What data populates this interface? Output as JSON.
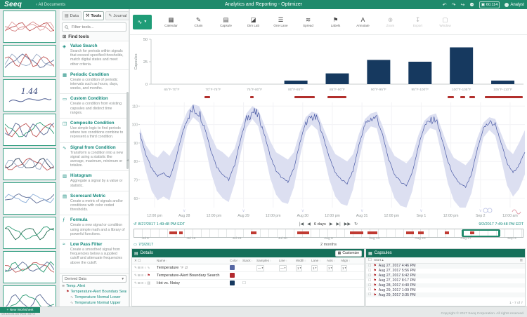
{
  "topbar": {
    "logo": "Seeq",
    "back_label": "‹ All Documents",
    "title": "Analytics and Reporting - Optimizer",
    "badge": "60.114",
    "user": "Analyst"
  },
  "sidebar": {
    "new_button": "+ New Worksheet",
    "thumbnails": [
      {
        "colors": [
          "#d98a8a",
          "#c05555",
          "#e0a0a0"
        ]
      },
      {
        "colors": [
          "#5a6a95",
          "#9aabc5",
          "#c05555"
        ]
      },
      {
        "text": "1.44"
      },
      {
        "colors": [
          "#2a9a72",
          "#c05555",
          "#5a6a95"
        ]
      },
      {
        "colors": [
          "#c05555",
          "#35455f",
          "#9aabc5"
        ]
      },
      {
        "colors": [
          "#5a6a95",
          "#8aadd8"
        ]
      },
      {
        "colors": [
          "#2a9a72",
          "#1f6b4f"
        ]
      },
      {
        "colors": [
          "#c05555",
          "#5a6a95",
          "#2a9a72"
        ]
      },
      {
        "colors": [
          "#2a9a72",
          "#5a6a95"
        ]
      }
    ]
  },
  "tools": {
    "tabs": [
      {
        "label": "Data",
        "icon": "▤",
        "active": false
      },
      {
        "label": "Tools",
        "icon": "⚒",
        "active": true
      },
      {
        "label": "Journal",
        "icon": "✎",
        "active": false
      }
    ],
    "filter_placeholder": "Filter tools...",
    "find_tools": "Find tools",
    "items": [
      {
        "icon": "◈",
        "name": "Value Search",
        "desc": "Search for periods within signals that exceed specified thresholds, match digital states and meet other criteria."
      },
      {
        "icon": "▦",
        "name": "Periodic Condition",
        "desc": "Create a condition of periodic intervals such as hours, days, weeks, and months."
      },
      {
        "icon": "▭",
        "name": "Custom Condition",
        "desc": "Create a condition from existing capsules and distinct time ranges."
      },
      {
        "icon": "◫",
        "name": "Composite Condition",
        "desc": "Use simple logic to find periods where two conditions combine to represent a third condition."
      },
      {
        "icon": "∿",
        "name": "Signal from Condition",
        "desc": "Transform a condition into a new signal using a statistic like average, maximum, minimum or totalize."
      },
      {
        "icon": "▥",
        "name": "Histogram",
        "desc": "Aggregate a signal by a value or statistic."
      },
      {
        "icon": "▤",
        "name": "Scorecard Metric",
        "desc": "Create a metric of signals and/or conditions with color coded thresholds."
      },
      {
        "icon": "ƒ",
        "name": "Formula",
        "desc": "Create a new signal or condition using simple math and a library of powerful functions."
      },
      {
        "icon": "≈",
        "name": "Low Pass Filter",
        "desc": "Create a smoothed signal from frequencies below a supplied cutoff and attenuate frequencies above the cutoff."
      }
    ],
    "derived": {
      "header": "Derived Data",
      "items": [
        {
          "icon": "≣",
          "label": "Temp. Alert",
          "indent": 0
        },
        {
          "icon": "⚑",
          "label": "Temperature-Alert Boundary Search",
          "indent": 1
        },
        {
          "icon": "∿",
          "label": "Temperature Normal Lower",
          "indent": 2
        },
        {
          "icon": "∿",
          "label": "Temperature Normal Upper",
          "indent": 2
        }
      ]
    }
  },
  "toolbar": {
    "view_icon": "∿",
    "buttons": [
      {
        "label": "Calendar",
        "icon": "▦",
        "disabled": false
      },
      {
        "label": "Chain",
        "icon": "✎",
        "disabled": false
      },
      {
        "label": "Capsule",
        "icon": "▤",
        "disabled": false
      },
      {
        "label": "Dim Lab",
        "icon": "◪",
        "disabled": false
      },
      {
        "label": "One Lane",
        "icon": "☰",
        "disabled": false
      },
      {
        "label": "Spread",
        "icon": "≋",
        "disabled": false
      },
      {
        "label": "Labels",
        "icon": "⚑",
        "disabled": false
      },
      {
        "label": "Annotate",
        "icon": "A",
        "disabled": false
      },
      {
        "label": "Zoom",
        "icon": "⊕",
        "disabled": true
      },
      {
        "label": "Export",
        "icon": "↧",
        "disabled": true
      },
      {
        "label": "Window",
        "icon": "▢",
        "disabled": true
      }
    ]
  },
  "chart_data": [
    {
      "id": "capsule-histogram",
      "type": "bar",
      "title": "Hot vs. Noisy",
      "categories": [
        "65°F-70°F",
        "70°F-75°F",
        "75°F-80°F",
        "80°F-85°F",
        "85°F-90°F",
        "90°F-95°F",
        "95°F-100°F",
        "100°F-105°F",
        "105°F-110°F"
      ],
      "values": [
        0,
        0,
        0,
        4,
        12,
        27,
        25,
        41,
        4
      ],
      "xlabel": "",
      "ylabel": "Capsules",
      "ylim": [
        0,
        50
      ],
      "yticks": [
        0,
        25,
        50
      ],
      "bar_color": "#16395f",
      "grid": false
    },
    {
      "id": "temperature-trend",
      "type": "line",
      "title": "Temperature",
      "ylabel": "",
      "ylim": [
        55,
        112
      ],
      "yticks": [
        60,
        70,
        80,
        90,
        100,
        110
      ],
      "x_ticks": [
        "12:00 pm",
        "Aug 28",
        "12:00 pm",
        "Aug 29",
        "12:00 pm",
        "Aug 30",
        "12:00 pm",
        "Aug 31",
        "12:00 pm",
        "Sep 1",
        "12:00 pm",
        "Sep 2",
        "12:00 am"
      ],
      "day_marker_ticks": [
        1,
        3,
        5,
        7,
        9,
        11
      ],
      "series": [
        {
          "name": "Temperature",
          "color": "#4a5aa5",
          "values": [
            95,
            84,
            76,
            72,
            74,
            71,
            80,
            93,
            104,
            108,
            107,
            98,
            86,
            77,
            73,
            70,
            78,
            92,
            103,
            107,
            105,
            95,
            83,
            75,
            71,
            69,
            76,
            90,
            101,
            104,
            103,
            93,
            82,
            74,
            70,
            68,
            75,
            89,
            100,
            103,
            104,
            94,
            81,
            73,
            69,
            67,
            74,
            88,
            99,
            102,
            103,
            92,
            80,
            72,
            68,
            66,
            73,
            87,
            98,
            101,
            100,
            90,
            79,
            74,
            78,
            85
          ]
        }
      ],
      "band": {
        "color": "#dcdff1",
        "lower_offsets": [
          6,
          9,
          12,
          13,
          13,
          12,
          10,
          8,
          5,
          4
        ],
        "upper_offsets": [
          3,
          5,
          8,
          10,
          12,
          12,
          9,
          6,
          3,
          3
        ]
      },
      "noise": {
        "amplitude": 2.2,
        "threshold": 96
      },
      "grid": true,
      "legend": "none"
    }
  ],
  "capsule_segments": [
    [
      0.143,
      0.158
    ],
    [
      0.266,
      0.276
    ],
    [
      0.385,
      0.44
    ],
    [
      0.475,
      0.525
    ],
    [
      0.798,
      0.815
    ],
    [
      0.832,
      0.845
    ],
    [
      0.857,
      0.872
    ],
    [
      0.898,
      1.0
    ]
  ],
  "timebar": {
    "start": "8/27/2017 1:49:48 PM EDT",
    "end": "9/2/2017 7:49:48 PM EDT",
    "controls": {
      "skip_back": "|◀",
      "back": "◀",
      "label": "6 days",
      "fwd": "▶",
      "skip_fwd": "▶|",
      "play": "▶▶",
      "refresh": "↻"
    },
    "auto_update_icon": "↺",
    "range_start": "7/3/2017",
    "range_label": "2 months",
    "scrub_labels": [
      "Jul 9",
      "Jul 16",
      "Jul 23",
      "Jul 30",
      "Aug 6",
      "Aug 13",
      "Aug 20",
      "Aug 27",
      "Sep 3"
    ],
    "selection": [
      0.845,
      0.94
    ],
    "marks": [
      [
        0.09,
        0.11
      ],
      [
        0.115,
        0.125
      ],
      [
        0.3,
        0.315
      ],
      [
        0.42,
        0.45
      ],
      [
        0.555,
        0.59
      ],
      [
        0.6,
        0.625
      ],
      [
        0.7,
        0.72
      ],
      [
        0.73,
        0.745
      ],
      [
        0.8,
        0.81
      ],
      [
        0.865,
        0.875
      ]
    ]
  },
  "details": {
    "title": "Details",
    "customize": "Customize",
    "lead_header": "✕ ☐",
    "columns": [
      "Name",
      "Color",
      "Stack",
      "Samples",
      "Line",
      "Width",
      "Lane",
      "Axis",
      "Align"
    ],
    "rows": [
      {
        "type": "signal",
        "type_icon": "∿",
        "name": "Temperature",
        "unit": "°F",
        "color": "#5667a3",
        "controls": {
          "samples": "—",
          "line": "—",
          "width": "1",
          "lane": "1",
          "axis": "1",
          "align": "1"
        }
      },
      {
        "type": "condition",
        "type_icon": "⚑",
        "name": "Temperature-Alert Boundary Search",
        "unit": "",
        "color": "#b2292e"
      },
      {
        "type": "histogram",
        "type_icon": "▥",
        "name": "Hot vs. Noisy",
        "unit": "",
        "color": "#16395f",
        "stack": true
      }
    ]
  },
  "capsules": {
    "title": "Capsules",
    "start_col": "Start",
    "sort_icon": "▴",
    "rows": [
      "Aug 27, 2017 4:46 PM",
      "Aug 27, 2017 5:56 PM",
      "Aug 27, 2017 6:42 PM",
      "Aug 27, 2017 8:17 PM",
      "Aug 28, 2017 4:40 PM",
      "Aug 29, 2017 1:09 PM",
      "Aug 29, 2017 3:35 PM"
    ],
    "footer": "1 - 7 of 7"
  },
  "statusbar": {
    "version": "v0.16.04.05-R04-4873",
    "copyright": "Copyright © 2017 Seeq Corporation. All rights reserved."
  }
}
